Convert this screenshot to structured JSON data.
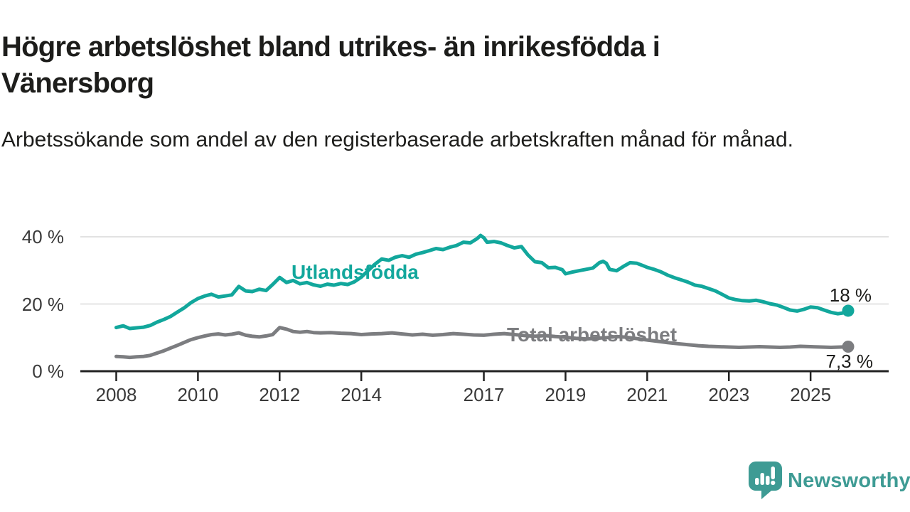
{
  "header": {
    "title": "Högre arbetslöshet bland utrikes- än inrikesfödda i Vänersborg",
    "subtitle": "Arbetssökande som andel av den registerbaserade arbetskraften månad för månad."
  },
  "branding": {
    "logo_text": "Newsworthy",
    "logo_icon": "speech-bubble-with-bar-chart-and-exclamation",
    "logo_color": "#3e9b94"
  },
  "chart_data": {
    "type": "line",
    "title": "Högre arbetslöshet bland utrikes- än inrikesfödda i Vänersborg",
    "subtitle": "Arbetssökande som andel av den registerbaserade arbetskraften månad för månad.",
    "unit": "%",
    "x_axis": {
      "ticks": [
        2008,
        2010,
        2012,
        2014,
        2017,
        2019,
        2021,
        2023,
        2025
      ],
      "range": [
        2007.15,
        2026.6
      ]
    },
    "y_axis": {
      "ticks": [
        {
          "value": 0,
          "label": "0 %"
        },
        {
          "value": 20,
          "label": "20 %"
        },
        {
          "value": 40,
          "label": "40 %"
        }
      ],
      "range": [
        0,
        44
      ],
      "grid": true
    },
    "legend_position": "inline-labels",
    "colors": {
      "gridline": "#d9d9d9",
      "axis": "#222222",
      "tick_text": "#3a3a3a"
    },
    "series": [
      {
        "name": "Utlandsfödda",
        "color": "#12a79c",
        "end_label": "18 %",
        "end_value": 18,
        "points": [
          [
            2008.0,
            13.0
          ],
          [
            2008.17,
            13.5
          ],
          [
            2008.33,
            12.7
          ],
          [
            2008.5,
            12.9
          ],
          [
            2008.67,
            13.1
          ],
          [
            2008.83,
            13.6
          ],
          [
            2009.0,
            14.6
          ],
          [
            2009.17,
            15.4
          ],
          [
            2009.33,
            16.3
          ],
          [
            2009.5,
            17.6
          ],
          [
            2009.67,
            18.9
          ],
          [
            2009.83,
            20.4
          ],
          [
            2010.0,
            21.6
          ],
          [
            2010.17,
            22.4
          ],
          [
            2010.33,
            22.9
          ],
          [
            2010.5,
            22.1
          ],
          [
            2010.67,
            22.4
          ],
          [
            2010.83,
            22.7
          ],
          [
            2011.0,
            25.2
          ],
          [
            2011.17,
            23.9
          ],
          [
            2011.33,
            23.7
          ],
          [
            2011.5,
            24.4
          ],
          [
            2011.67,
            24.0
          ],
          [
            2011.83,
            25.8
          ],
          [
            2012.0,
            27.9
          ],
          [
            2012.17,
            26.4
          ],
          [
            2012.33,
            27.0
          ],
          [
            2012.5,
            26.0
          ],
          [
            2012.67,
            26.4
          ],
          [
            2012.83,
            25.7
          ],
          [
            2013.0,
            25.3
          ],
          [
            2013.17,
            25.9
          ],
          [
            2013.33,
            25.6
          ],
          [
            2013.5,
            26.1
          ],
          [
            2013.67,
            25.8
          ],
          [
            2013.83,
            26.6
          ],
          [
            2014.0,
            28.0
          ],
          [
            2014.17,
            30.0
          ],
          [
            2014.33,
            31.8
          ],
          [
            2014.5,
            33.4
          ],
          [
            2014.67,
            33.0
          ],
          [
            2014.83,
            33.9
          ],
          [
            2015.0,
            34.4
          ],
          [
            2015.17,
            33.9
          ],
          [
            2015.33,
            34.8
          ],
          [
            2015.5,
            35.3
          ],
          [
            2015.67,
            35.9
          ],
          [
            2015.83,
            36.5
          ],
          [
            2016.0,
            36.2
          ],
          [
            2016.17,
            36.9
          ],
          [
            2016.33,
            37.4
          ],
          [
            2016.5,
            38.4
          ],
          [
            2016.67,
            38.2
          ],
          [
            2016.83,
            39.4
          ],
          [
            2016.92,
            40.4
          ],
          [
            2017.0,
            39.7
          ],
          [
            2017.08,
            38.4
          ],
          [
            2017.25,
            38.6
          ],
          [
            2017.42,
            38.2
          ],
          [
            2017.58,
            37.4
          ],
          [
            2017.75,
            36.7
          ],
          [
            2017.92,
            37.1
          ],
          [
            2018.08,
            34.6
          ],
          [
            2018.25,
            32.6
          ],
          [
            2018.42,
            32.3
          ],
          [
            2018.58,
            30.8
          ],
          [
            2018.75,
            30.9
          ],
          [
            2018.92,
            30.2
          ],
          [
            2019.0,
            29.0
          ],
          [
            2019.17,
            29.5
          ],
          [
            2019.33,
            29.9
          ],
          [
            2019.5,
            30.3
          ],
          [
            2019.67,
            30.7
          ],
          [
            2019.83,
            32.3
          ],
          [
            2019.92,
            32.7
          ],
          [
            2020.0,
            32.1
          ],
          [
            2020.08,
            30.3
          ],
          [
            2020.25,
            29.9
          ],
          [
            2020.42,
            31.2
          ],
          [
            2020.58,
            32.3
          ],
          [
            2020.75,
            32.1
          ],
          [
            2020.92,
            31.3
          ],
          [
            2021.0,
            30.9
          ],
          [
            2021.17,
            30.3
          ],
          [
            2021.33,
            29.6
          ],
          [
            2021.5,
            28.6
          ],
          [
            2021.67,
            27.8
          ],
          [
            2021.83,
            27.2
          ],
          [
            2022.0,
            26.5
          ],
          [
            2022.17,
            25.6
          ],
          [
            2022.33,
            25.3
          ],
          [
            2022.5,
            24.6
          ],
          [
            2022.67,
            23.9
          ],
          [
            2022.83,
            22.9
          ],
          [
            2023.0,
            21.8
          ],
          [
            2023.17,
            21.3
          ],
          [
            2023.33,
            21.0
          ],
          [
            2023.5,
            20.9
          ],
          [
            2023.67,
            21.1
          ],
          [
            2023.83,
            20.7
          ],
          [
            2024.0,
            20.1
          ],
          [
            2024.17,
            19.7
          ],
          [
            2024.33,
            19.0
          ],
          [
            2024.5,
            18.2
          ],
          [
            2024.67,
            17.9
          ],
          [
            2024.83,
            18.4
          ],
          [
            2025.0,
            19.1
          ],
          [
            2025.17,
            18.9
          ],
          [
            2025.33,
            18.2
          ],
          [
            2025.5,
            17.5
          ],
          [
            2025.67,
            17.1
          ],
          [
            2025.83,
            17.4
          ],
          [
            2025.92,
            18.0
          ]
        ]
      },
      {
        "name": "Total arbetslöshet",
        "color": "#7c7d80",
        "end_label": "7,3 %",
        "end_value": 7.3,
        "points": [
          [
            2008.0,
            4.4
          ],
          [
            2008.17,
            4.3
          ],
          [
            2008.33,
            4.1
          ],
          [
            2008.5,
            4.3
          ],
          [
            2008.67,
            4.4
          ],
          [
            2008.83,
            4.7
          ],
          [
            2009.0,
            5.4
          ],
          [
            2009.17,
            6.1
          ],
          [
            2009.33,
            6.9
          ],
          [
            2009.5,
            7.7
          ],
          [
            2009.67,
            8.6
          ],
          [
            2009.83,
            9.4
          ],
          [
            2010.0,
            10.0
          ],
          [
            2010.17,
            10.5
          ],
          [
            2010.33,
            10.9
          ],
          [
            2010.5,
            11.1
          ],
          [
            2010.67,
            10.8
          ],
          [
            2010.83,
            11.0
          ],
          [
            2011.0,
            11.4
          ],
          [
            2011.17,
            10.7
          ],
          [
            2011.33,
            10.4
          ],
          [
            2011.5,
            10.2
          ],
          [
            2011.67,
            10.5
          ],
          [
            2011.83,
            10.9
          ],
          [
            2012.0,
            13.0
          ],
          [
            2012.17,
            12.5
          ],
          [
            2012.33,
            11.8
          ],
          [
            2012.5,
            11.6
          ],
          [
            2012.67,
            11.8
          ],
          [
            2012.83,
            11.5
          ],
          [
            2013.0,
            11.4
          ],
          [
            2013.25,
            11.5
          ],
          [
            2013.5,
            11.3
          ],
          [
            2013.75,
            11.2
          ],
          [
            2014.0,
            10.9
          ],
          [
            2014.25,
            11.1
          ],
          [
            2014.5,
            11.2
          ],
          [
            2014.75,
            11.4
          ],
          [
            2015.0,
            11.1
          ],
          [
            2015.25,
            10.8
          ],
          [
            2015.5,
            11.0
          ],
          [
            2015.75,
            10.7
          ],
          [
            2016.0,
            10.9
          ],
          [
            2016.25,
            11.2
          ],
          [
            2016.5,
            11.0
          ],
          [
            2016.75,
            10.8
          ],
          [
            2017.0,
            10.7
          ],
          [
            2017.25,
            11.0
          ],
          [
            2017.5,
            11.2
          ],
          [
            2017.75,
            10.9
          ],
          [
            2018.0,
            10.6
          ],
          [
            2018.25,
            10.4
          ],
          [
            2018.5,
            10.6
          ],
          [
            2018.75,
            10.3
          ],
          [
            2019.0,
            10.1
          ],
          [
            2019.25,
            9.8
          ],
          [
            2019.5,
            9.6
          ],
          [
            2019.75,
            9.8
          ],
          [
            2020.0,
            10.0
          ],
          [
            2020.25,
            10.3
          ],
          [
            2020.5,
            10.1
          ],
          [
            2020.75,
            9.7
          ],
          [
            2021.0,
            9.3
          ],
          [
            2021.25,
            8.9
          ],
          [
            2021.5,
            8.5
          ],
          [
            2021.75,
            8.2
          ],
          [
            2022.0,
            7.9
          ],
          [
            2022.25,
            7.6
          ],
          [
            2022.5,
            7.4
          ],
          [
            2022.75,
            7.3
          ],
          [
            2023.0,
            7.2
          ],
          [
            2023.25,
            7.1
          ],
          [
            2023.5,
            7.2
          ],
          [
            2023.75,
            7.3
          ],
          [
            2024.0,
            7.2
          ],
          [
            2024.25,
            7.1
          ],
          [
            2024.5,
            7.2
          ],
          [
            2024.75,
            7.4
          ],
          [
            2025.0,
            7.3
          ],
          [
            2025.25,
            7.2
          ],
          [
            2025.5,
            7.1
          ],
          [
            2025.75,
            7.2
          ],
          [
            2025.92,
            7.3
          ]
        ]
      }
    ]
  }
}
